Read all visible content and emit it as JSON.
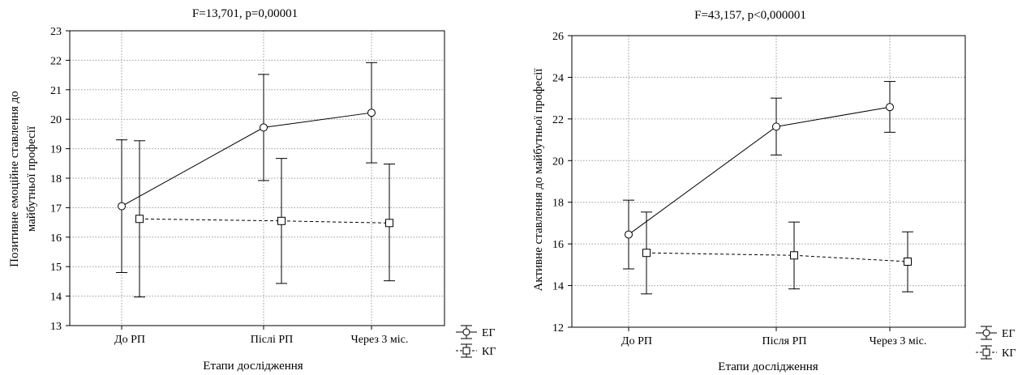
{
  "chart_data": [
    {
      "type": "line",
      "title": "F=13,701, p=0,00001",
      "xlabel": "Етапи дослідження",
      "ylabel_lines": [
        "Позитивне емоційне ставлення до",
        "майбутньої професії"
      ],
      "categories": [
        "До РП",
        "Післі РП",
        "Через 3 міс."
      ],
      "ylim": [
        13,
        23
      ],
      "yticks": [
        13,
        14,
        15,
        16,
        17,
        18,
        19,
        20,
        21,
        22,
        23
      ],
      "grid": true,
      "legend_position": "bottom-right-outside",
      "series": [
        {
          "name": "ЕГ",
          "marker": "circle",
          "line_style": "solid",
          "color": "#000000",
          "values": [
            17.05,
            19.72,
            20.22
          ],
          "err_low": [
            14.8,
            17.92,
            18.52
          ],
          "err_high": [
            19.3,
            21.52,
            21.92
          ]
        },
        {
          "name": "КГ",
          "marker": "square",
          "line_style": "dashed",
          "color": "#000000",
          "values": [
            16.62,
            16.55,
            16.48
          ],
          "err_low": [
            13.97,
            14.43,
            14.52
          ],
          "err_high": [
            19.27,
            18.67,
            18.48
          ]
        }
      ]
    },
    {
      "type": "line",
      "title": "F=43,157, p<0,000001",
      "xlabel": "Етапи дослідження",
      "ylabel_lines": [
        "Активне ставлення до майбутньої професії"
      ],
      "categories": [
        "До РП",
        "Після РП",
        "Через 3 міс."
      ],
      "ylim": [
        12,
        26
      ],
      "yticks": [
        12,
        14,
        16,
        18,
        20,
        22,
        24,
        26
      ],
      "grid": true,
      "legend_position": "bottom-right-outside",
      "series": [
        {
          "name": "ЕГ",
          "marker": "circle",
          "line_style": "solid",
          "color": "#000000",
          "values": [
            16.45,
            21.63,
            22.57
          ],
          "err_low": [
            14.8,
            20.27,
            21.36
          ],
          "err_high": [
            18.1,
            23.0,
            23.8
          ]
        },
        {
          "name": "КГ",
          "marker": "square",
          "line_style": "dashed",
          "color": "#000000",
          "values": [
            15.57,
            15.45,
            15.15
          ],
          "err_low": [
            13.6,
            13.84,
            13.7
          ],
          "err_high": [
            17.53,
            17.05,
            16.58
          ]
        }
      ]
    }
  ]
}
